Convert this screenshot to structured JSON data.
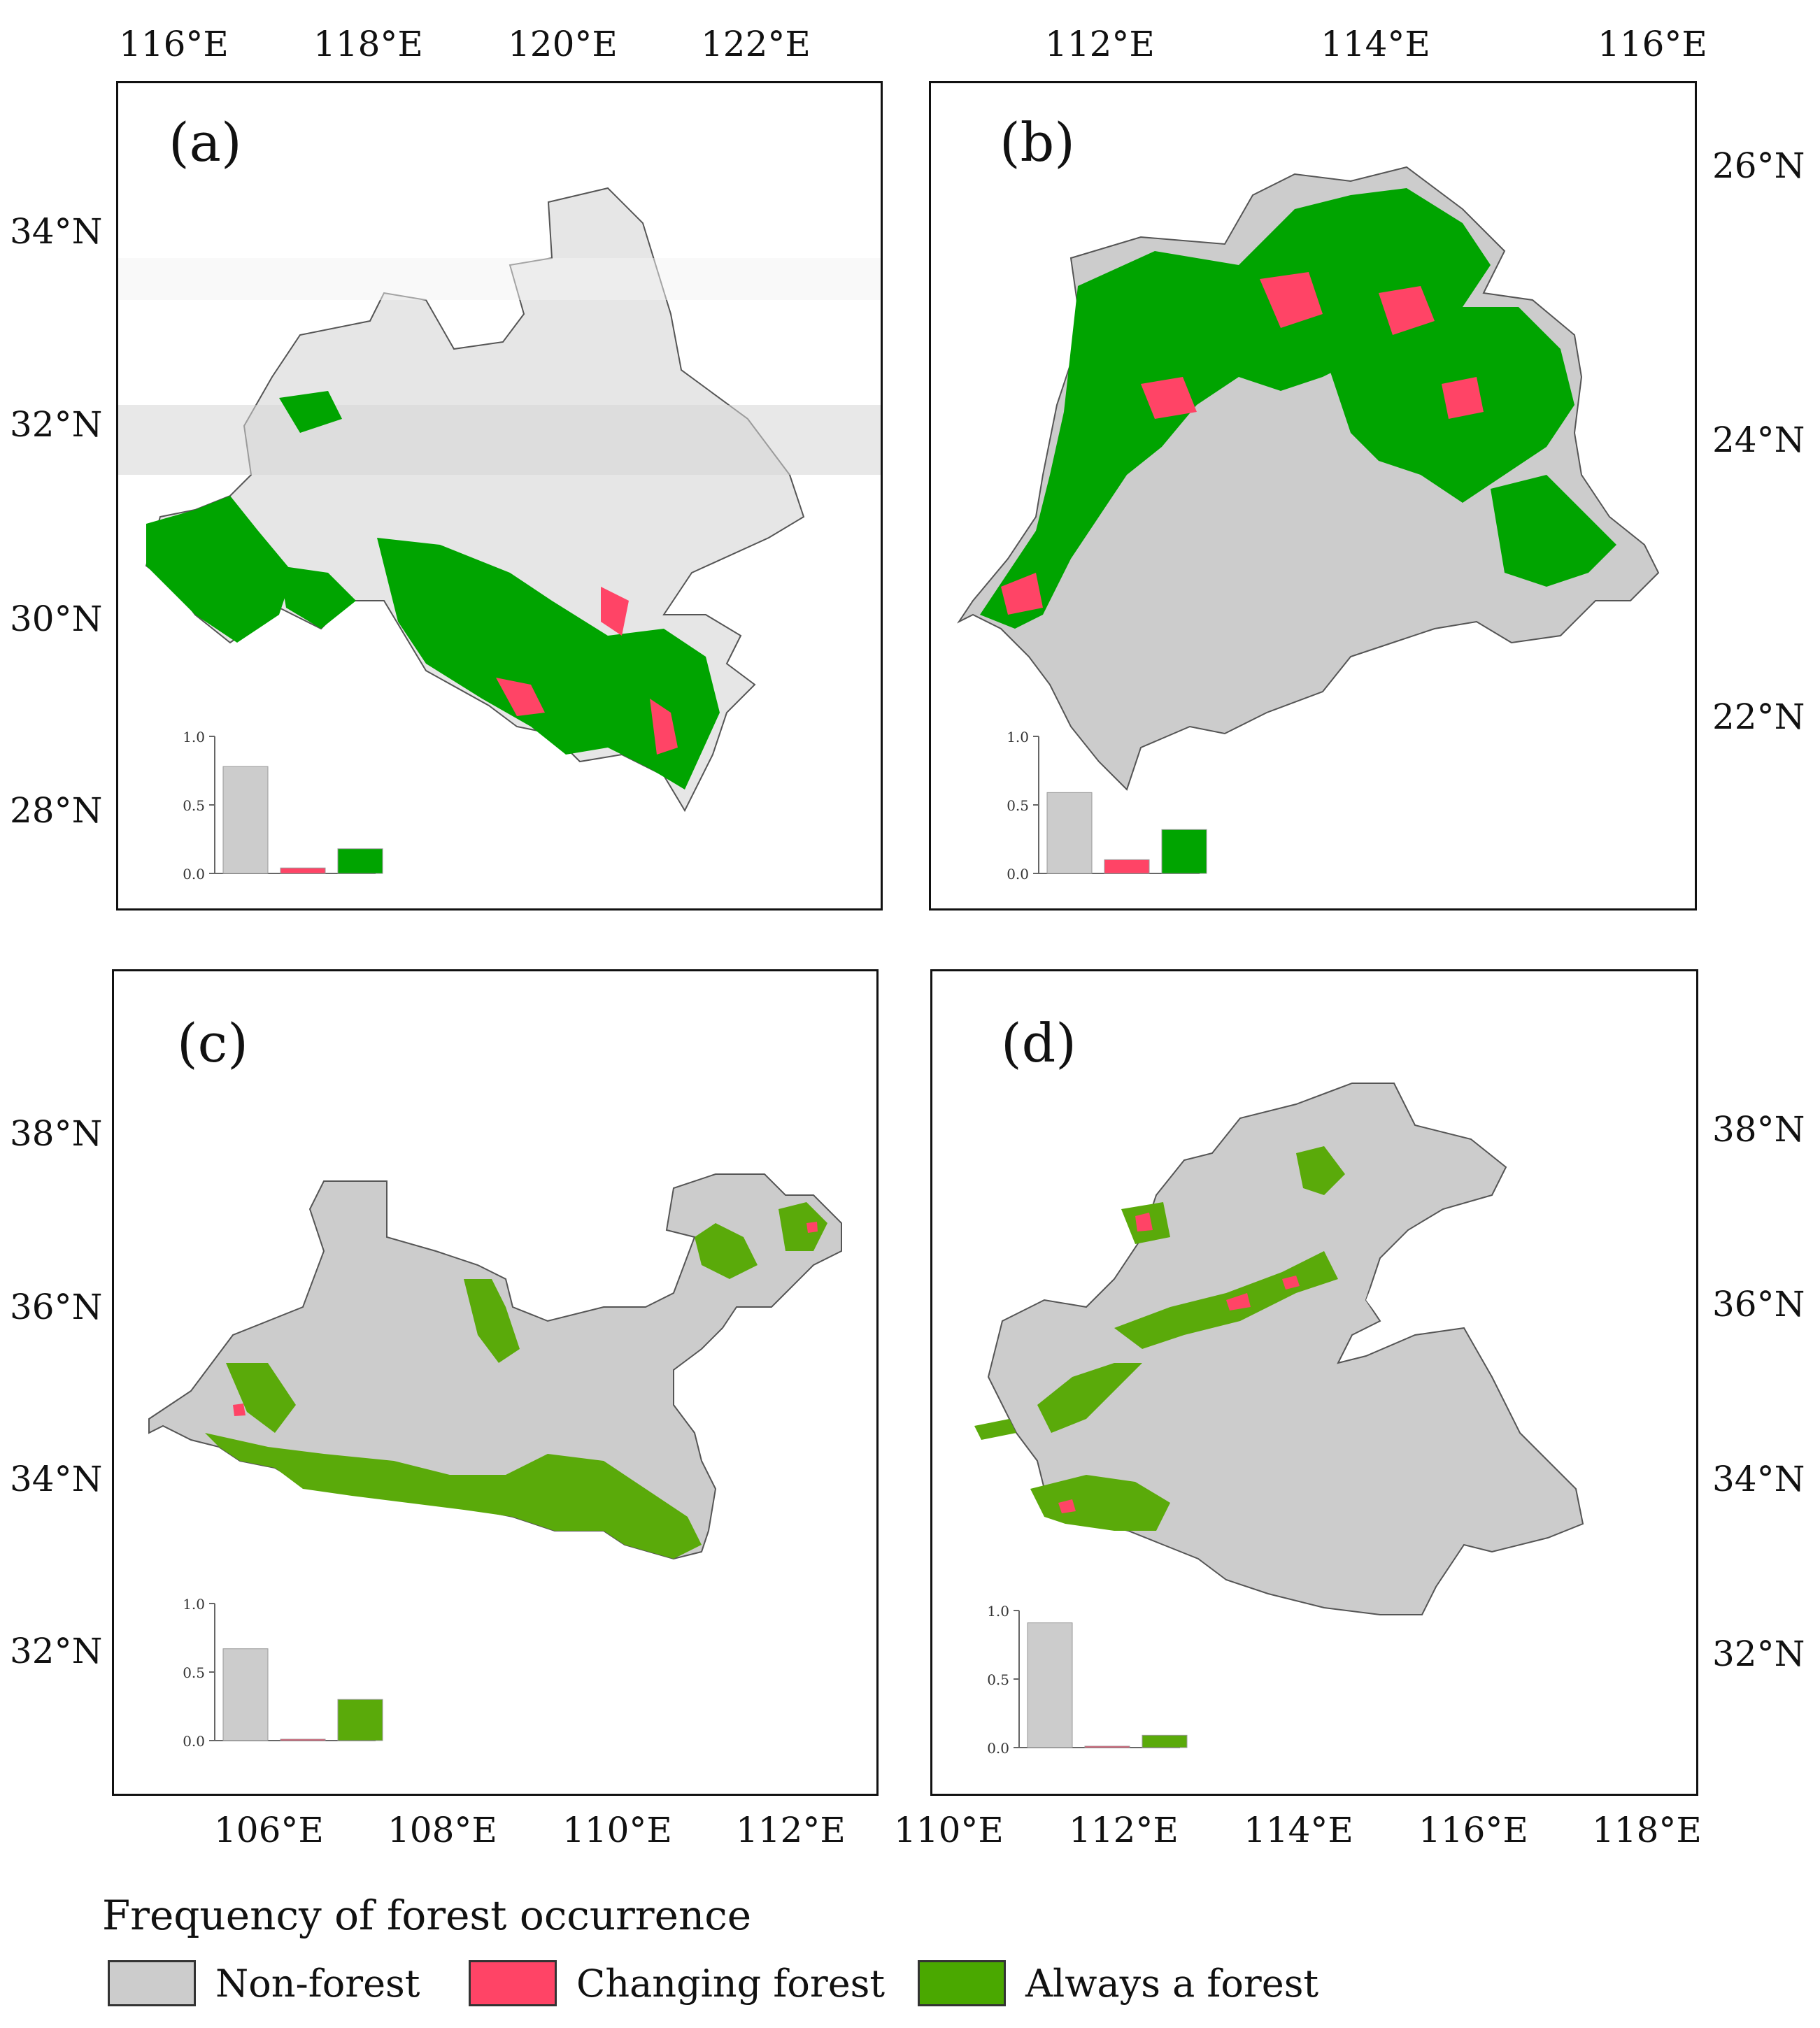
{
  "panels": [
    {
      "id": "a",
      "label": "(a)",
      "lon_ticks": [
        "116°E",
        "118°E",
        "120°E",
        "122°E"
      ],
      "lat_ticks": [
        "34°N",
        "32°N",
        "30°N",
        "28°N"
      ],
      "inset": {
        "ylim": [
          0,
          1.0
        ],
        "ytick_labels": [
          "1.0",
          "0.5",
          "0.0"
        ],
        "values": [
          0.78,
          0.04,
          0.18
        ]
      }
    },
    {
      "id": "b",
      "label": "(b)",
      "lon_ticks": [
        "112°E",
        "114°E",
        "116°E"
      ],
      "lat_ticks": [
        "26°N",
        "24°N",
        "22°N"
      ],
      "inset": {
        "ylim": [
          0,
          1.0
        ],
        "ytick_labels": [
          "1.0",
          "0.5",
          "0.0"
        ],
        "values": [
          0.59,
          0.1,
          0.32
        ]
      }
    },
    {
      "id": "c",
      "label": "(c)",
      "lon_ticks": [
        "106°E",
        "108°E",
        "110°E",
        "112°E"
      ],
      "lat_ticks": [
        "38°N",
        "36°N",
        "34°N",
        "32°N"
      ],
      "inset": {
        "ylim": [
          0,
          1.0
        ],
        "ytick_labels": [
          "1.0",
          "0.5",
          "0.0"
        ],
        "values": [
          0.67,
          0.01,
          0.3
        ]
      }
    },
    {
      "id": "d",
      "label": "(d)",
      "lon_ticks": [
        "110°E",
        "112°E",
        "114°E",
        "116°E",
        "118°E"
      ],
      "lat_ticks": [
        "38°N",
        "36°N",
        "34°N",
        "32°N"
      ],
      "inset": {
        "ylim": [
          0,
          1.0
        ],
        "ytick_labels": [
          "1.0",
          "0.5",
          "0.0"
        ],
        "values": [
          0.91,
          0.01,
          0.09
        ]
      }
    }
  ],
  "legend": {
    "title": "Frequency of forest occurrence",
    "items": [
      {
        "label": "Non-forest",
        "color": "#cccccc"
      },
      {
        "label": "Changing forest",
        "color": "#ff4466"
      },
      {
        "label": "Always a forest",
        "color": "#4aa800"
      }
    ]
  },
  "colors": {
    "non_forest": "#cccccc",
    "changing": "#ff4466",
    "forest_ab": "#00a400",
    "forest_cd": "#5aaa0a",
    "outline": "#555555"
  }
}
